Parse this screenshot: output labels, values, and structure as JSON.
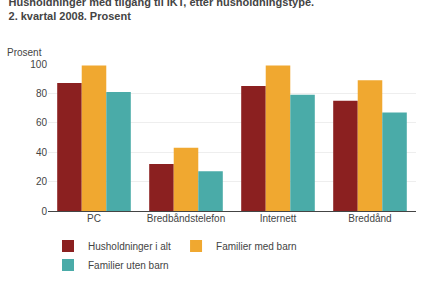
{
  "chart_data": {
    "type": "bar",
    "title": "Husholdninger med tilgang til IKT, etter husholdningstype.",
    "subtitle": "2. kvartal 2008. Prosent",
    "ylabel": "Prosent",
    "categories": [
      "PC",
      "Bredbåndstelefon",
      "Internett",
      "Breddånd"
    ],
    "series": [
      {
        "name": "Husholdninger i alt",
        "color": "#8B2020",
        "values": [
          87,
          32,
          85,
          75
        ]
      },
      {
        "name": "Familier med barn",
        "color": "#F0A830",
        "values": [
          99,
          43,
          99,
          89
        ]
      },
      {
        "name": "Familier uten barn",
        "color": "#4AABA8",
        "values": [
          81,
          27,
          79,
          67
        ]
      }
    ],
    "ylim": [
      0,
      100
    ],
    "yticks": [
      0,
      20,
      40,
      60,
      80,
      100
    ],
    "grid": true,
    "legend": "bottom"
  }
}
